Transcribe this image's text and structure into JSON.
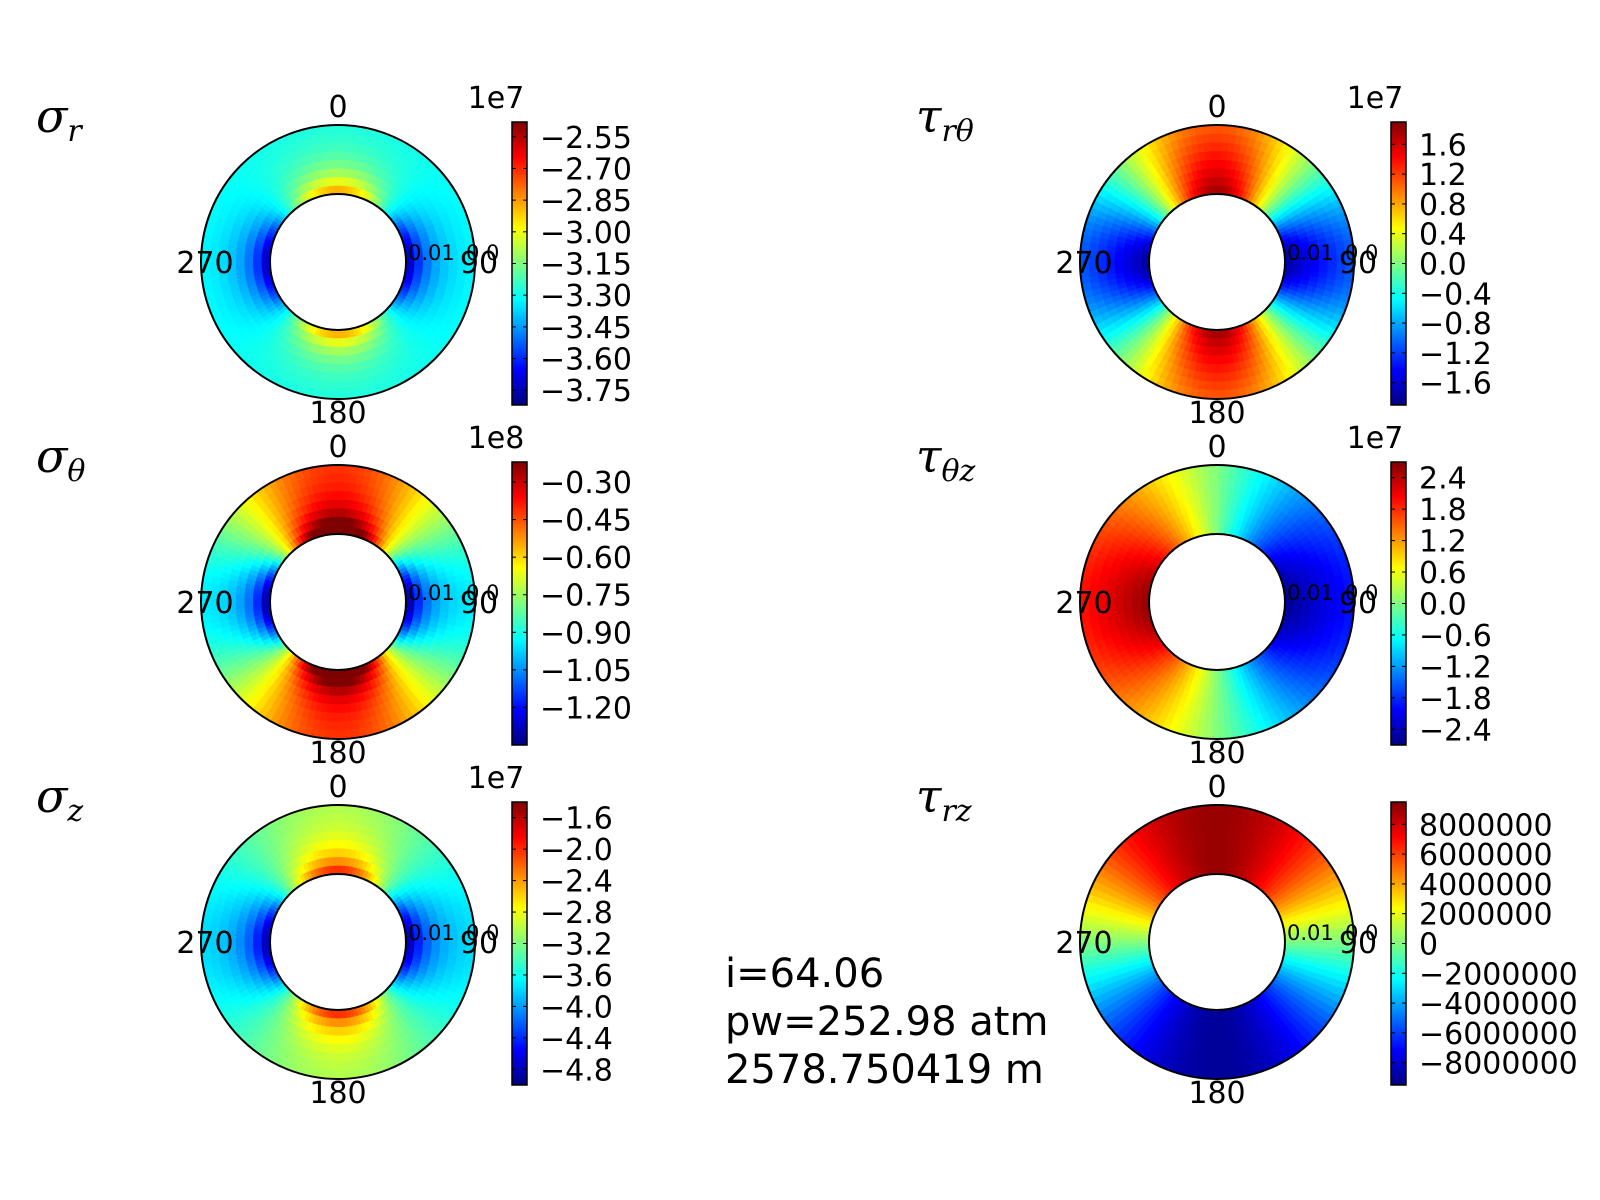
{
  "colormap": [
    "#00007f",
    "#0000ff",
    "#007fff",
    "#00ffff",
    "#7fff7f",
    "#ffff00",
    "#ff7f00",
    "#ff0000",
    "#7f0000"
  ],
  "info": {
    "line1": "i=64.06",
    "line2": "pw=252.98 atm",
    "line3": "2578.750419 m"
  },
  "chart_data": [
    {
      "type": "heatmap",
      "projection": "polar",
      "title_symbol": "σ",
      "title_subscript": "r",
      "angle_labels": {
        "top": "0",
        "right": "90",
        "bottom": "180",
        "left": "270"
      },
      "radial_labels": [
        "0.01",
        "0.0"
      ],
      "colorbar": {
        "exponent": "1e7",
        "ticks": [
          "−2.55",
          "−2.70",
          "−2.85",
          "−3.00",
          "−3.15",
          "−3.30",
          "−3.45",
          "−3.60",
          "−3.75"
        ],
        "tick_values": [
          -2.55,
          -2.7,
          -2.85,
          -3.0,
          -3.15,
          -3.3,
          -3.45,
          -3.6,
          -3.75
        ],
        "range": [
          -3.82,
          -2.48
        ]
      },
      "field": {
        "mean": -3.3,
        "terms": [
          {
            "n": 2,
            "phase": 0,
            "amp": 0.5,
            "decay": 3.0
          }
        ]
      }
    },
    {
      "type": "heatmap",
      "projection": "polar",
      "title_symbol": "τ",
      "title_subscript": "rθ",
      "angle_labels": {
        "top": "0",
        "right": "90",
        "bottom": "180",
        "left": "270"
      },
      "radial_labels": [
        "0.01",
        "0.0"
      ],
      "colorbar": {
        "exponent": "1e7",
        "ticks": [
          "1.6",
          "1.2",
          "0.8",
          "0.4",
          "0.0",
          "−0.4",
          "−0.8",
          "−1.2",
          "−1.6"
        ],
        "tick_values": [
          1.6,
          1.2,
          0.8,
          0.4,
          0.0,
          -0.4,
          -0.8,
          -1.2,
          -1.6
        ],
        "range": [
          -1.9,
          1.9
        ]
      },
      "field": {
        "mean": 0.0,
        "terms": [
          {
            "n": 2,
            "phase": 90,
            "amp": -1.8,
            "decay": 0.5
          }
        ]
      }
    },
    {
      "type": "heatmap",
      "projection": "polar",
      "title_symbol": "σ",
      "title_subscript": "θ",
      "angle_labels": {
        "top": "0",
        "right": "90",
        "bottom": "180",
        "left": "270"
      },
      "radial_labels": [
        "0.01",
        "0.0"
      ],
      "colorbar": {
        "exponent": "1e8",
        "ticks": [
          "−0.30",
          "−0.45",
          "−0.60",
          "−0.75",
          "−0.90",
          "−1.05",
          "−1.20"
        ],
        "tick_values": [
          -0.3,
          -0.45,
          -0.6,
          -0.75,
          -0.9,
          -1.05,
          -1.2
        ],
        "range": [
          -1.35,
          -0.22
        ]
      },
      "field": {
        "mean": -0.68,
        "terms": [
          {
            "n": 2,
            "phase": 0,
            "amp": 0.25,
            "decay": 0
          },
          {
            "n": 2,
            "phase": 0,
            "amp": 0.45,
            "decay": 3.5
          }
        ]
      }
    },
    {
      "type": "heatmap",
      "projection": "polar",
      "title_symbol": "τ",
      "title_subscript": "θz",
      "angle_labels": {
        "top": "0",
        "right": "90",
        "bottom": "180",
        "left": "270"
      },
      "radial_labels": [
        "0.01",
        "0.0"
      ],
      "colorbar": {
        "exponent": "1e7",
        "ticks": [
          "2.4",
          "1.8",
          "1.2",
          "0.6",
          "0.0",
          "−0.6",
          "−1.2",
          "−1.8",
          "−2.4"
        ],
        "tick_values": [
          2.4,
          1.8,
          1.2,
          0.6,
          0.0,
          -0.6,
          -1.2,
          -1.8,
          -2.4
        ],
        "range": [
          -2.7,
          2.7
        ]
      },
      "field": {
        "mean": 0.0,
        "terms": [
          {
            "n": 1,
            "phase": 90,
            "amp": -2.6,
            "decay": 0.3
          }
        ]
      }
    },
    {
      "type": "heatmap",
      "projection": "polar",
      "title_symbol": "σ",
      "title_subscript": "z",
      "angle_labels": {
        "top": "0",
        "right": "90",
        "bottom": "180",
        "left": "270"
      },
      "radial_labels": [
        "0.01",
        "0.0"
      ],
      "colorbar": {
        "exponent": "1e7",
        "ticks": [
          "−1.6",
          "−2.0",
          "−2.4",
          "−2.8",
          "−3.2",
          "−3.6",
          "−4.0",
          "−4.4",
          "−4.8"
        ],
        "tick_values": [
          -1.6,
          -2.0,
          -2.4,
          -2.8,
          -3.2,
          -3.6,
          -4.0,
          -4.4,
          -4.8
        ],
        "range": [
          -5.0,
          -1.4
        ]
      },
      "field": {
        "mean": -3.4,
        "terms": [
          {
            "n": 2,
            "phase": 0,
            "amp": 0.3,
            "decay": 0
          },
          {
            "n": 2,
            "phase": 0,
            "amp": 1.3,
            "decay": 3.0
          }
        ]
      }
    },
    {
      "type": "heatmap",
      "projection": "polar",
      "title_symbol": "τ",
      "title_subscript": "rz",
      "angle_labels": {
        "top": "0",
        "right": "90",
        "bottom": "180",
        "left": "270"
      },
      "radial_labels": [
        "0.01",
        "0.0"
      ],
      "colorbar": {
        "exponent": "",
        "ticks": [
          "8000000",
          "6000000",
          "4000000",
          "2000000",
          "0",
          "−2000000",
          "−4000000",
          "−6000000",
          "−8000000"
        ],
        "tick_values": [
          8000000,
          6000000,
          4000000,
          2000000,
          0,
          -2000000,
          -4000000,
          -6000000,
          -8000000
        ],
        "range": [
          -9500000,
          9500000
        ]
      },
      "field": {
        "mean": 0.0,
        "terms": [
          {
            "n": 1,
            "phase": 0,
            "amp": 9000000,
            "decay": 0
          }
        ]
      }
    }
  ]
}
